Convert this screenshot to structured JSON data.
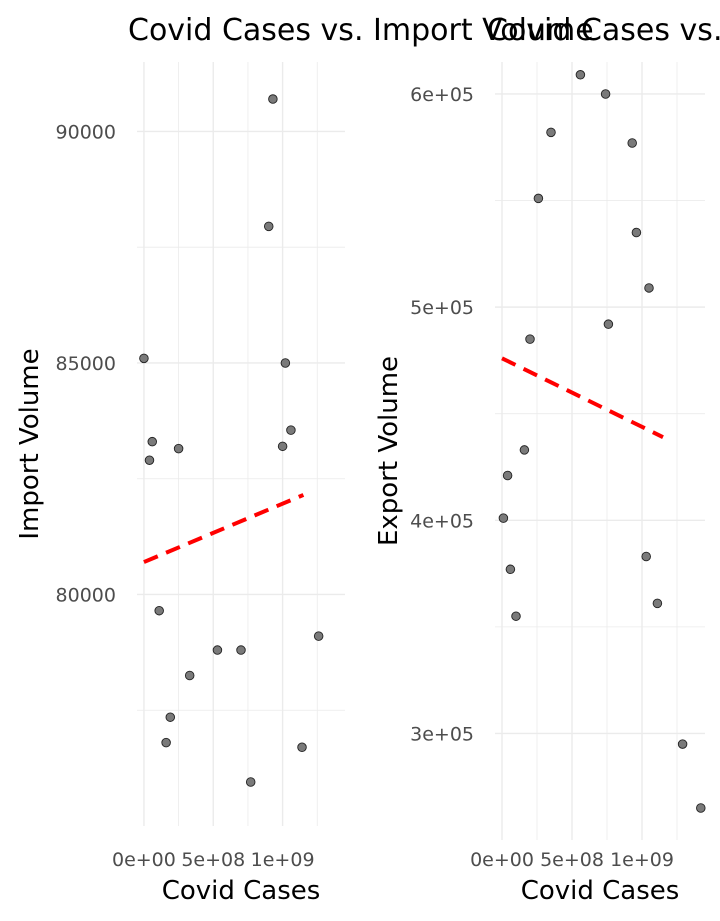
{
  "chart_data": [
    {
      "type": "scatter",
      "title": "Covid Cases vs. Import Volume",
      "xlabel": "Covid Cases",
      "ylabel": "Import Volume",
      "xlim": [
        -50000000,
        1450000000
      ],
      "ylim": [
        75000,
        91500
      ],
      "x_ticks": [
        0,
        500000000,
        1000000000
      ],
      "x_tick_labels": [
        "0e+00",
        "5e+08",
        "1e+09"
      ],
      "y_ticks": [
        80000,
        85000,
        90000
      ],
      "y_tick_labels": [
        "80000",
        "85000",
        "90000"
      ],
      "x_minor": [
        250000000,
        750000000,
        1250000000
      ],
      "y_minor": [
        77500,
        82500,
        87500
      ],
      "grid": true,
      "point_color": "#7a7a7a",
      "trend_color": "#ff0000",
      "points": [
        {
          "x": 0,
          "y": 85100
        },
        {
          "x": 40000000,
          "y": 82900
        },
        {
          "x": 60000000,
          "y": 83300
        },
        {
          "x": 110000000,
          "y": 79650
        },
        {
          "x": 160000000,
          "y": 76800
        },
        {
          "x": 190000000,
          "y": 77350
        },
        {
          "x": 250000000,
          "y": 83150
        },
        {
          "x": 330000000,
          "y": 78250
        },
        {
          "x": 530000000,
          "y": 78800
        },
        {
          "x": 700000000,
          "y": 78800
        },
        {
          "x": 770000000,
          "y": 75950
        },
        {
          "x": 900000000,
          "y": 87950
        },
        {
          "x": 930000000,
          "y": 90700
        },
        {
          "x": 1000000000,
          "y": 83200
        },
        {
          "x": 1020000000,
          "y": 85000
        },
        {
          "x": 1060000000,
          "y": 83550
        },
        {
          "x": 1140000000,
          "y": 76700
        },
        {
          "x": 1260000000,
          "y": 79100
        }
      ],
      "trend": {
        "x": [
          0,
          1150000000
        ],
        "y": [
          80700,
          82150
        ]
      }
    },
    {
      "type": "scatter",
      "title": "Covid Cases vs. Export Volume",
      "xlabel": "Covid Cases",
      "ylabel": "Export Volume",
      "xlim": [
        -50000000,
        1450000000
      ],
      "ylim": [
        250000,
        615000
      ],
      "x_ticks": [
        0,
        500000000,
        1000000000
      ],
      "x_tick_labels": [
        "0e+00",
        "5e+08",
        "1e+09"
      ],
      "y_ticks": [
        300000,
        400000,
        500000,
        600000
      ],
      "y_tick_labels": [
        "3e+05",
        "4e+05",
        "5e+05",
        "6e+05"
      ],
      "x_minor": [
        250000000,
        750000000,
        1250000000
      ],
      "y_minor": [
        350000,
        450000,
        550000
      ],
      "grid": true,
      "point_color": "#7a7a7a",
      "trend_color": "#ff0000",
      "points": [
        {
          "x": 10000000,
          "y": 401000
        },
        {
          "x": 40000000,
          "y": 421000
        },
        {
          "x": 60000000,
          "y": 377000
        },
        {
          "x": 100000000,
          "y": 355000
        },
        {
          "x": 160000000,
          "y": 433000
        },
        {
          "x": 200000000,
          "y": 485000
        },
        {
          "x": 260000000,
          "y": 551000
        },
        {
          "x": 350000000,
          "y": 582000
        },
        {
          "x": 560000000,
          "y": 609000
        },
        {
          "x": 760000000,
          "y": 492000
        },
        {
          "x": 740000000,
          "y": 600000
        },
        {
          "x": 930000000,
          "y": 577000
        },
        {
          "x": 960000000,
          "y": 535000
        },
        {
          "x": 1030000000,
          "y": 383000
        },
        {
          "x": 1050000000,
          "y": 509000
        },
        {
          "x": 1110000000,
          "y": 361000
        },
        {
          "x": 1290000000,
          "y": 295000
        },
        {
          "x": 1420000000,
          "y": 265000
        }
      ],
      "trend": {
        "x": [
          0,
          1150000000
        ],
        "y": [
          476000,
          439000
        ]
      }
    }
  ]
}
